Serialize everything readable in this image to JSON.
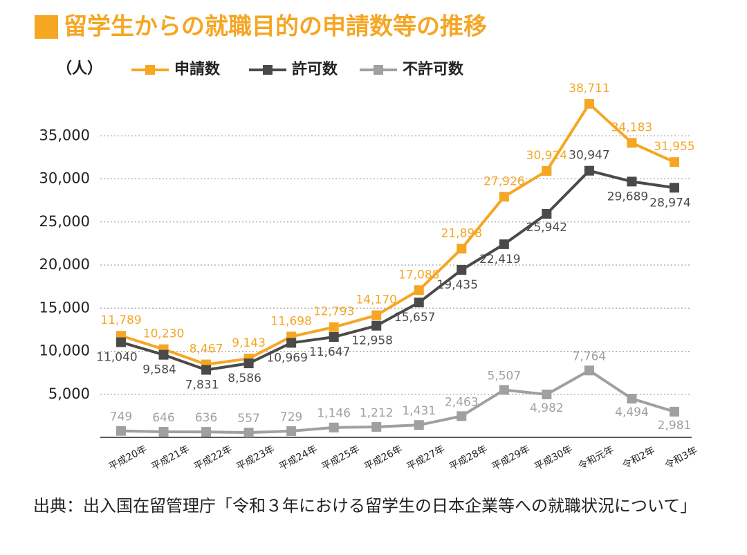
{
  "chart_data": {
    "type": "line",
    "title": "留学生からの就職目的の申請数等の推移",
    "y_label": "（人）",
    "categories": [
      "平成20年",
      "平成21年",
      "平成22年",
      "平成23年",
      "平成24年",
      "平成25年",
      "平成26年",
      "平成27年",
      "平成28年",
      "平成29年",
      "平成30年",
      "令和元年",
      "令和2年",
      "令和3年"
    ],
    "series": [
      {
        "name": "申請数",
        "color": "#f5a623",
        "values": [
          11789,
          10230,
          8467,
          9143,
          11698,
          12793,
          14170,
          17088,
          21898,
          27926,
          30924,
          38711,
          34183,
          31955
        ],
        "value_labels": [
          "11,789",
          "10,230",
          "8,467",
          "9,143",
          "11,698",
          "12,793",
          "14,170",
          "17,088",
          "21,898",
          "27,926",
          "30,924",
          "38,711",
          "34,183",
          "31,955"
        ]
      },
      {
        "name": "許可数",
        "color": "#4a4a4a",
        "values": [
          11040,
          9584,
          7831,
          8586,
          10969,
          11647,
          12958,
          15657,
          19435,
          22419,
          25942,
          30947,
          29689,
          28974
        ],
        "value_labels": [
          "11,040",
          "9,584",
          "7,831",
          "8,586",
          "10,969",
          "11,647",
          "12,958",
          "15,657",
          "19,435",
          "22,419",
          "25,942",
          "30,947",
          "29,689",
          "28,974"
        ]
      },
      {
        "name": "不許可数",
        "color": "#a0a0a0",
        "values": [
          749,
          646,
          636,
          557,
          729,
          1146,
          1212,
          1431,
          2463,
          5507,
          4982,
          7764,
          4494,
          2981
        ],
        "value_labels": [
          "749",
          "646",
          "636",
          "557",
          "729",
          "1,146",
          "1,212",
          "1,431",
          "2,463",
          "5,507",
          "4,982",
          "7,764",
          "4,494",
          "2,981"
        ]
      }
    ],
    "ylim": [
      0,
      40000
    ],
    "yticks": [
      {
        "value": 5000,
        "label": "5,000"
      },
      {
        "value": 10000,
        "label": "10,000"
      },
      {
        "value": 15000,
        "label": "15,000"
      },
      {
        "value": 20000,
        "label": "20,000"
      },
      {
        "value": 25000,
        "label": "25,000"
      },
      {
        "value": 30000,
        "label": "30,000"
      },
      {
        "value": 35000,
        "label": "35,000"
      }
    ],
    "grid": true,
    "source": "出典：出入国在留管理庁「令和３年における留学生の日本企業等への就職状況について」"
  }
}
